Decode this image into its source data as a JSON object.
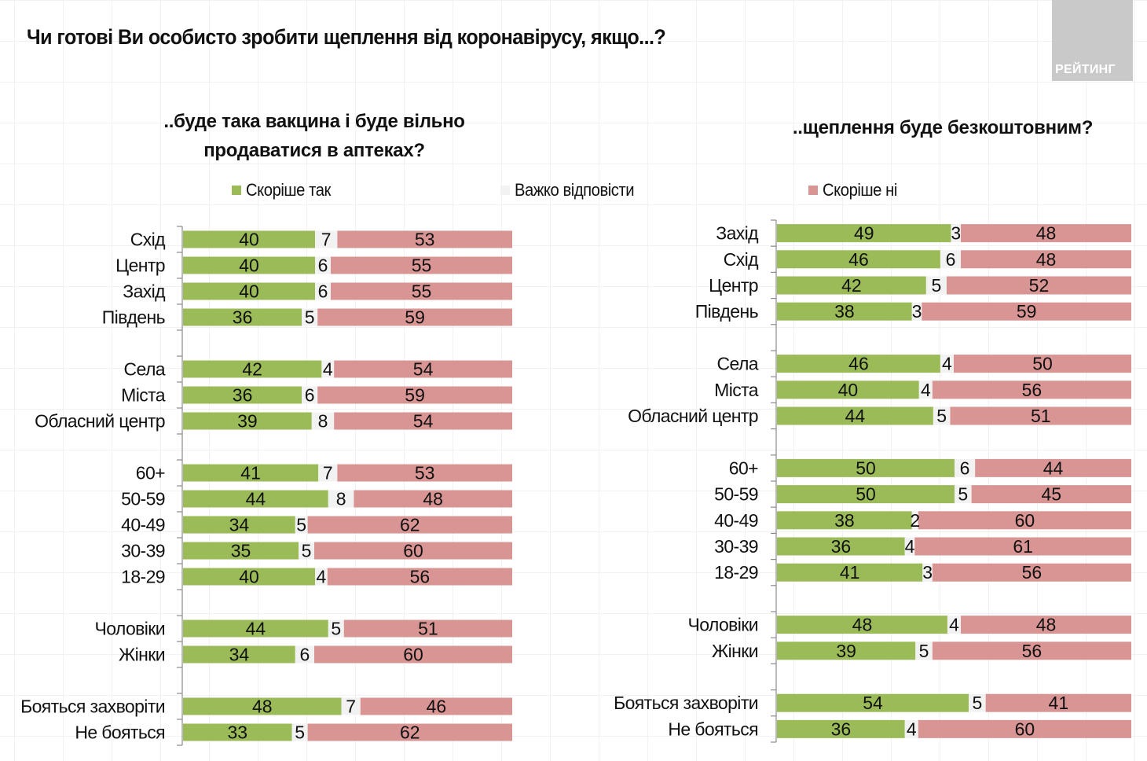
{
  "title": "Чи готові Ви особисто зробити щеплення від коронавірусу, якщо...?",
  "logo": "РЕЙТИНГ",
  "legend": [
    {
      "label": "Скоріше так",
      "color": "#9bbb59"
    },
    {
      "label": "Важко відповісти",
      "color": "#f2f2f2"
    },
    {
      "label": "Скоріше ні",
      "color": "#d99594"
    }
  ],
  "chart_data": [
    {
      "type": "bar",
      "stacked": true,
      "orientation": "horizontal",
      "title": "..буде така вакцина і буде вільно продаватися в аптеках?",
      "xlim": [
        0,
        100
      ],
      "grid": false,
      "legend_position": "top",
      "series_names": [
        "Скоріше так",
        "Важко відповісти",
        "Скоріше ні"
      ],
      "groups": [
        {
          "categories": [
            "Схід",
            "Центр",
            "Захід",
            "Південь"
          ],
          "yes": [
            40,
            40,
            40,
            36
          ],
          "hard": [
            7,
            6,
            6,
            5
          ],
          "no": [
            53,
            55,
            55,
            59
          ]
        },
        {
          "categories": [
            "Села",
            "Міста",
            "Обласний центр"
          ],
          "yes": [
            42,
            36,
            39
          ],
          "hard": [
            4,
            6,
            8
          ],
          "no": [
            54,
            59,
            54
          ]
        },
        {
          "categories": [
            "60+",
            "50-59",
            "40-49",
            "30-39",
            "18-29"
          ],
          "yes": [
            41,
            44,
            34,
            35,
            40
          ],
          "hard": [
            7,
            8,
            5,
            5,
            4
          ],
          "no": [
            53,
            48,
            62,
            60,
            56
          ]
        },
        {
          "categories": [
            "Чоловіки",
            "Жінки"
          ],
          "yes": [
            44,
            34
          ],
          "hard": [
            5,
            6
          ],
          "no": [
            51,
            60
          ]
        },
        {
          "categories": [
            "Бояться захворіти",
            "Не бояться"
          ],
          "yes": [
            48,
            33
          ],
          "hard": [
            7,
            5
          ],
          "no": [
            46,
            62
          ]
        }
      ]
    },
    {
      "type": "bar",
      "stacked": true,
      "orientation": "horizontal",
      "title": "..щеплення буде безкоштовним?",
      "xlim": [
        0,
        100
      ],
      "grid": false,
      "legend_position": "top",
      "series_names": [
        "Скоріше так",
        "Важко відповісти",
        "Скоріше ні"
      ],
      "groups": [
        {
          "categories": [
            "Захід",
            "Схід",
            "Центр",
            "Південь"
          ],
          "yes": [
            49,
            46,
            42,
            38
          ],
          "hard": [
            3,
            6,
            5,
            3
          ],
          "no": [
            48,
            48,
            52,
            59
          ]
        },
        {
          "categories": [
            "Села",
            "Міста",
            "Обласний центр"
          ],
          "yes": [
            46,
            40,
            44
          ],
          "hard": [
            4,
            4,
            5
          ],
          "no": [
            50,
            56,
            51
          ]
        },
        {
          "categories": [
            "60+",
            "50-59",
            "40-49",
            "30-39",
            "18-29"
          ],
          "yes": [
            50,
            50,
            38,
            36,
            41
          ],
          "hard": [
            6,
            5,
            2,
            4,
            3
          ],
          "no": [
            44,
            45,
            60,
            61,
            56
          ]
        },
        {
          "categories": [
            "Чоловіки",
            "Жінки"
          ],
          "yes": [
            48,
            39
          ],
          "hard": [
            4,
            5
          ],
          "no": [
            48,
            56
          ]
        },
        {
          "categories": [
            "Бояться захворіти",
            "Не бояться"
          ],
          "yes": [
            54,
            36
          ],
          "hard": [
            5,
            4
          ],
          "no": [
            41,
            60
          ]
        }
      ]
    }
  ]
}
